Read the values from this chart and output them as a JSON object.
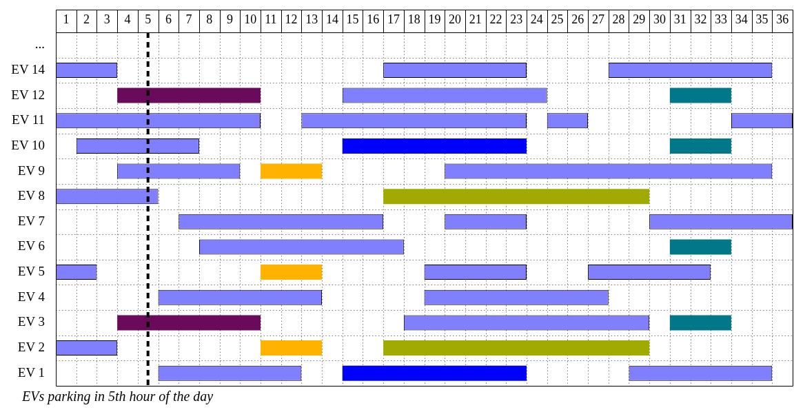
{
  "chart_data": {
    "type": "bar",
    "orientation": "horizontal",
    "categories": [
      "...",
      "EV 14",
      "EV 12",
      "EV 11",
      "EV 10",
      "EV 9",
      "EV 8",
      "EV 7",
      "EV 6",
      "EV 5",
      "EV 4",
      "EV 3",
      "EV 2",
      "EV 1"
    ],
    "xlim": [
      0,
      36
    ],
    "xticks": [
      {
        "value": 0.5,
        "label": "1"
      },
      {
        "value": 1.5,
        "label": "2"
      },
      {
        "value": 2.5,
        "label": "3"
      },
      {
        "value": 3.5,
        "label": "4"
      },
      {
        "value": 4.5,
        "label": "5"
      },
      {
        "value": 5.5,
        "label": "6"
      },
      {
        "value": 6.5,
        "label": "7"
      },
      {
        "value": 7.5,
        "label": "8"
      },
      {
        "value": 8.5,
        "label": "9"
      },
      {
        "value": 9.5,
        "label": "10"
      },
      {
        "value": 10.5,
        "label": "11"
      },
      {
        "value": 11.5,
        "label": "12"
      },
      {
        "value": 12.5,
        "label": "13"
      },
      {
        "value": 13.5,
        "label": "14"
      },
      {
        "value": 14.5,
        "label": "15"
      },
      {
        "value": 15.5,
        "label": "16"
      },
      {
        "value": 16.5,
        "label": "17"
      },
      {
        "value": 17.5,
        "label": "18"
      },
      {
        "value": 18.5,
        "label": "19"
      },
      {
        "value": 19.5,
        "label": "20"
      },
      {
        "value": 20.5,
        "label": "21"
      },
      {
        "value": 21.5,
        "label": "22"
      },
      {
        "value": 22.5,
        "label": "23"
      },
      {
        "value": 23.5,
        "label": "24"
      },
      {
        "value": 24.5,
        "label": "25"
      },
      {
        "value": 25.5,
        "label": "26"
      },
      {
        "value": 26.5,
        "label": "27"
      },
      {
        "value": 27.5,
        "label": "28"
      },
      {
        "value": 28.5,
        "label": "29"
      },
      {
        "value": 29.5,
        "label": "30"
      },
      {
        "value": 30.5,
        "label": "31"
      },
      {
        "value": 31.5,
        "label": "32"
      },
      {
        "value": 32.5,
        "label": "33"
      },
      {
        "value": 33.5,
        "label": "34"
      },
      {
        "value": 34.5,
        "label": "35"
      },
      {
        "value": 35.5,
        "label": "36"
      }
    ],
    "grid": true,
    "series": [
      {
        "color": "#8080ff",
        "base": [
          null,
          0,
          14,
          0,
          1,
          3,
          0,
          6,
          7,
          0,
          5,
          17,
          0,
          5
        ],
        "values": [
          null,
          3,
          10,
          10,
          6,
          6,
          5,
          10,
          10,
          2,
          8,
          12,
          3,
          7
        ]
      },
      {
        "color": "#8080ff",
        "base": [
          null,
          16,
          null,
          12,
          null,
          19,
          null,
          19,
          null,
          18,
          18,
          null,
          null,
          28
        ],
        "values": [
          null,
          7,
          null,
          11,
          null,
          16,
          null,
          4,
          null,
          5,
          9,
          null,
          null,
          7
        ]
      },
      {
        "color": "#8080ff",
        "base": [
          null,
          27,
          null,
          24,
          null,
          null,
          null,
          29,
          null,
          26,
          null,
          null,
          null,
          null
        ],
        "values": [
          null,
          8,
          null,
          2,
          null,
          null,
          null,
          7,
          null,
          6,
          null,
          null,
          null,
          null
        ]
      },
      {
        "color": "#8080ff",
        "base": [
          null,
          null,
          null,
          33,
          null,
          null,
          null,
          null,
          null,
          null,
          null,
          null,
          null,
          null
        ],
        "values": [
          null,
          null,
          null,
          3,
          null,
          null,
          null,
          null,
          null,
          null,
          null,
          null,
          null,
          null
        ]
      },
      {
        "color": "#6a0a5a",
        "base": [
          null,
          null,
          3,
          null,
          null,
          null,
          null,
          null,
          null,
          null,
          null,
          3,
          null,
          null
        ],
        "values": [
          null,
          null,
          7,
          null,
          null,
          null,
          null,
          null,
          null,
          null,
          null,
          7,
          null,
          null
        ]
      },
      {
        "color": "#0000ff",
        "base": [
          null,
          null,
          null,
          null,
          14,
          null,
          null,
          null,
          null,
          null,
          null,
          null,
          null,
          14
        ],
        "values": [
          null,
          null,
          null,
          null,
          9,
          null,
          null,
          null,
          null,
          null,
          null,
          null,
          null,
          9
        ]
      },
      {
        "color": "#00788a",
        "base": [
          null,
          null,
          30,
          null,
          30,
          null,
          null,
          null,
          30,
          null,
          null,
          30,
          null,
          null
        ],
        "values": [
          null,
          null,
          3,
          null,
          3,
          null,
          null,
          null,
          3,
          null,
          null,
          3,
          null,
          null
        ]
      },
      {
        "color": "#ffb300",
        "base": [
          null,
          null,
          null,
          null,
          null,
          10,
          null,
          null,
          null,
          10,
          null,
          null,
          10,
          null
        ],
        "values": [
          null,
          null,
          null,
          null,
          null,
          3,
          null,
          null,
          null,
          3,
          null,
          null,
          3,
          null
        ]
      },
      {
        "color": "#a0aa00",
        "base": [
          null,
          null,
          null,
          null,
          null,
          null,
          16,
          null,
          null,
          null,
          null,
          null,
          16,
          null
        ],
        "values": [
          null,
          null,
          null,
          null,
          null,
          null,
          13,
          null,
          null,
          null,
          null,
          null,
          13,
          null
        ]
      }
    ],
    "ref_lines": [
      {
        "axis": "x",
        "value": 4.5,
        "line_style": "dashed",
        "color": "#000000"
      }
    ],
    "annotations": [
      "EVs parking in 5th hour of the day"
    ]
  }
}
